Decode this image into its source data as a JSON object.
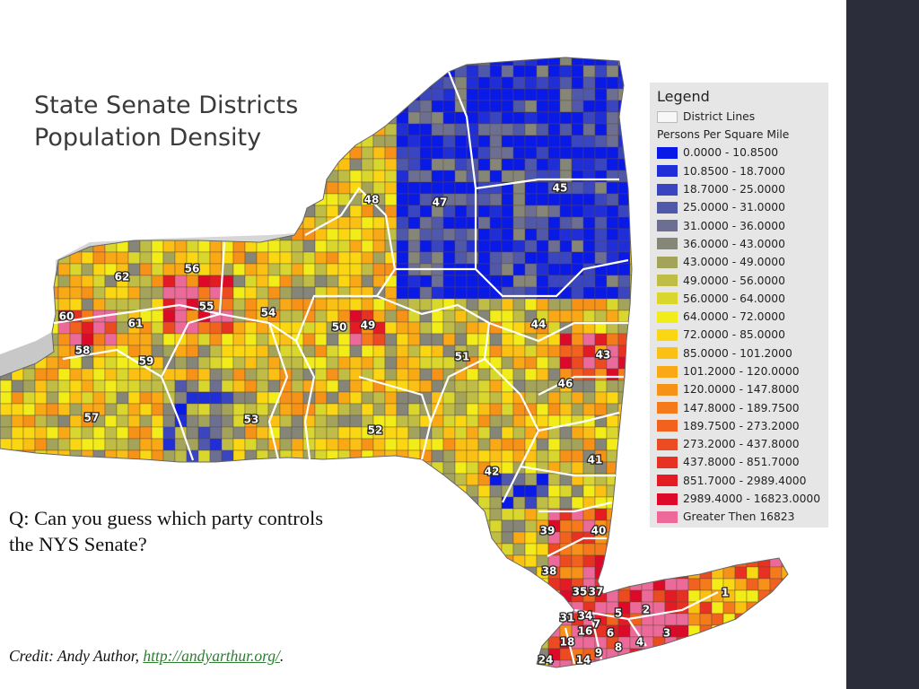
{
  "title": {
    "line1": "State Senate Districts",
    "line2": "Population Density"
  },
  "legend": {
    "heading": "Legend",
    "district_lines": "District Lines",
    "subheading": "Persons Per Square Mile",
    "classes": [
      {
        "label": "0.0000 - 10.8500",
        "color": "#0a1ae6"
      },
      {
        "label": "10.8500 - 18.7000",
        "color": "#1f2ed6"
      },
      {
        "label": "18.7000 - 25.0000",
        "color": "#3a45c0"
      },
      {
        "label": "25.0000 - 31.0000",
        "color": "#5058aa"
      },
      {
        "label": "31.0000 - 36.0000",
        "color": "#6c6f92"
      },
      {
        "label": "36.0000 - 43.0000",
        "color": "#858677"
      },
      {
        "label": "43.0000 - 49.0000",
        "color": "#a3a35c"
      },
      {
        "label": "49.0000 - 56.0000",
        "color": "#bfbd45"
      },
      {
        "label": "56.0000 - 64.0000",
        "color": "#d9d62e"
      },
      {
        "label": "64.0000 - 72.0000",
        "color": "#f2ed19"
      },
      {
        "label": "72.0000 - 85.0000",
        "color": "#fbd713"
      },
      {
        "label": "85.0000 - 101.2000",
        "color": "#fbc014"
      },
      {
        "label": "101.2000 - 120.0000",
        "color": "#f9a816"
      },
      {
        "label": "120.0000 - 147.8000",
        "color": "#f79218"
      },
      {
        "label": "147.8000 - 189.7500",
        "color": "#f47a1b"
      },
      {
        "label": "189.7500 - 273.2000",
        "color": "#f0621e"
      },
      {
        "label": "273.2000 - 437.8000",
        "color": "#ec4a21"
      },
      {
        "label": "437.8000 - 851.7000",
        "color": "#e73223"
      },
      {
        "label": "851.7000 - 2989.4000",
        "color": "#e21b25"
      },
      {
        "label": "2989.4000 - 16823.0000",
        "color": "#dc0a28"
      },
      {
        "label": "Greater Then 16823",
        "color": "#ec6a9a"
      }
    ]
  },
  "district_labels": [
    "1",
    "2",
    "3",
    "4",
    "5",
    "6",
    "7",
    "8",
    "9",
    "14",
    "16",
    "18",
    "24",
    "31",
    "34",
    "35",
    "37",
    "38",
    "39",
    "40",
    "41",
    "42",
    "43",
    "44",
    "45",
    "46",
    "47",
    "48",
    "49",
    "50",
    "51",
    "52",
    "53",
    "54",
    "55",
    "56",
    "57",
    "58",
    "59",
    "60",
    "61",
    "62"
  ],
  "question": {
    "line1": "Q: Can you guess which party controls",
    "line2": "the NYS Senate?"
  },
  "credit": {
    "prefix": "Credit: Andy Author, ",
    "link_text": "http://andyarthur.org/",
    "suffix": "."
  },
  "colors": {
    "sidebar": "#2b2d3b",
    "neighbor_states": "#c8c8c8",
    "district_lines": "#ffffff"
  }
}
